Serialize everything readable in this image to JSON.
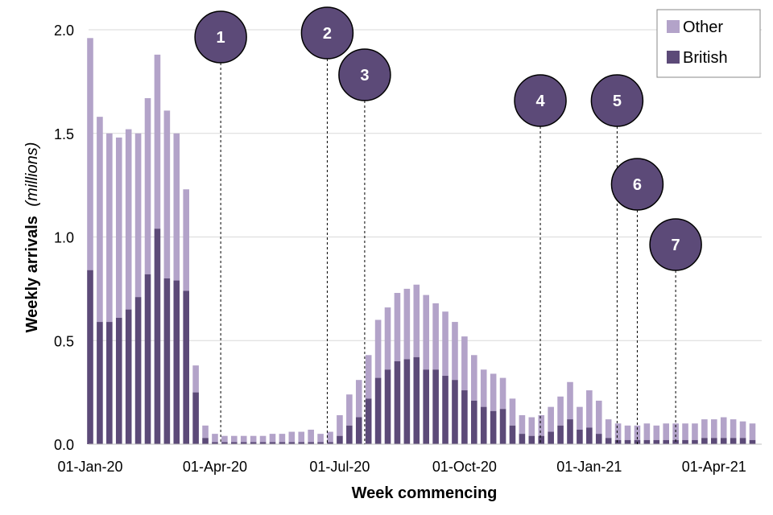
{
  "chart_data": {
    "type": "bar",
    "stacked": true,
    "ylabel_main": "Weekly arrivals",
    "ylabel_unit": "(millions)",
    "xlabel": "Week commencing",
    "ylim": [
      0,
      2.0
    ],
    "yticks": [
      "0.0",
      "0.5",
      "1.0",
      "1.5",
      "2.0"
    ],
    "xtick_labels": [
      {
        "label": "01-Jan-20",
        "week_index": 0
      },
      {
        "label": "01-Apr-20",
        "week_index": 13
      },
      {
        "label": "01-Jul-20",
        "week_index": 26
      },
      {
        "label": "01-Oct-20",
        "week_index": 39
      },
      {
        "label": "01-Jan-21",
        "week_index": 52
      },
      {
        "label": "01-Apr-21",
        "week_index": 65
      }
    ],
    "grid": true,
    "legend_position": "top-right",
    "colors": {
      "other": "#b3a3c9",
      "british": "#5c4a78",
      "marker": "#5c4a78"
    },
    "series": [
      {
        "name": "British",
        "values": [
          0.84,
          0.59,
          0.59,
          0.61,
          0.65,
          0.71,
          0.82,
          1.04,
          0.8,
          0.79,
          0.74,
          0.25,
          0.03,
          0.01,
          0.01,
          0.01,
          0.01,
          0.01,
          0.01,
          0.01,
          0.01,
          0.01,
          0.01,
          0.01,
          0.01,
          0.01,
          0.04,
          0.09,
          0.13,
          0.22,
          0.32,
          0.36,
          0.4,
          0.41,
          0.42,
          0.36,
          0.36,
          0.33,
          0.31,
          0.26,
          0.21,
          0.18,
          0.16,
          0.17,
          0.09,
          0.05,
          0.04,
          0.04,
          0.06,
          0.09,
          0.12,
          0.07,
          0.08,
          0.05,
          0.03,
          0.02,
          0.02,
          0.02,
          0.02,
          0.02,
          0.02,
          0.02,
          0.02,
          0.02,
          0.03,
          0.03,
          0.03,
          0.03,
          0.03,
          0.02
        ]
      },
      {
        "name": "Other",
        "values": [
          1.12,
          0.99,
          0.91,
          0.87,
          0.87,
          0.79,
          0.85,
          0.84,
          0.81,
          0.71,
          0.49,
          0.13,
          0.06,
          0.04,
          0.03,
          0.03,
          0.03,
          0.03,
          0.03,
          0.04,
          0.04,
          0.05,
          0.05,
          0.06,
          0.04,
          0.05,
          0.1,
          0.15,
          0.18,
          0.21,
          0.28,
          0.3,
          0.33,
          0.34,
          0.35,
          0.36,
          0.32,
          0.31,
          0.28,
          0.26,
          0.22,
          0.18,
          0.18,
          0.15,
          0.13,
          0.09,
          0.09,
          0.1,
          0.12,
          0.14,
          0.18,
          0.11,
          0.18,
          0.16,
          0.09,
          0.08,
          0.07,
          0.07,
          0.08,
          0.07,
          0.08,
          0.08,
          0.08,
          0.08,
          0.09,
          0.09,
          0.1,
          0.09,
          0.08,
          0.08
        ]
      }
    ],
    "annotations": [
      {
        "label": "1",
        "week_index": 13.6
      },
      {
        "label": "2",
        "week_index": 24.7
      },
      {
        "label": "3",
        "week_index": 28.6
      },
      {
        "label": "4",
        "week_index": 46.9
      },
      {
        "label": "5",
        "week_index": 54.9
      },
      {
        "label": "6",
        "week_index": 57.0
      },
      {
        "label": "7",
        "week_index": 61.0
      }
    ]
  }
}
